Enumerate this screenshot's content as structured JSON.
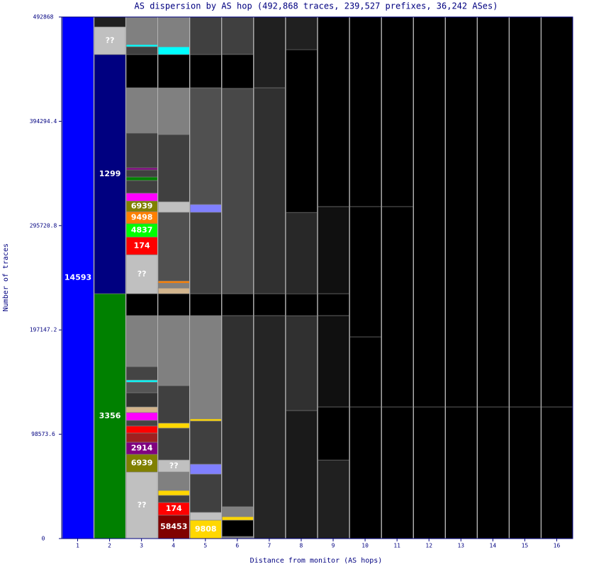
{
  "chart_data": {
    "type": "stacked-columns",
    "title": "AS dispersion by AS hop (492,868 traces, 239,527 prefixes, 36,242 ASes)",
    "x_label": "Distance from monitor (AS hops)",
    "y_label": "Number of traces",
    "ylim": [
      0,
      492868
    ],
    "yticks": [
      0,
      98573.6,
      197147.2,
      295720.8,
      394294.4,
      492868
    ],
    "categories": [
      "1",
      "2",
      "3",
      "4",
      "5",
      "6",
      "7",
      "8",
      "9",
      "10",
      "11",
      "12",
      "13",
      "14",
      "15",
      "16"
    ],
    "stacks": [
      {
        "segments": [
          {
            "value": 492868,
            "color": "#0000ff",
            "label": "14593"
          }
        ]
      },
      {
        "segments": [
          {
            "value": 231400,
            "color": "#008000",
            "label": "3356"
          },
          {
            "value": 226000,
            "color": "#000080",
            "label": "1299"
          },
          {
            "value": 26100,
            "color": "#c0c0c0",
            "label": "??"
          },
          {
            "value": 9368,
            "color": "#202020"
          }
        ]
      },
      {
        "segments": [
          {
            "value": 62900,
            "color": "#c0c0c0",
            "label": "??"
          },
          {
            "value": 16700,
            "color": "#808000",
            "label": "6939"
          },
          {
            "value": 11400,
            "color": "#800080",
            "label": "2914"
          },
          {
            "value": 8700,
            "color": "#a02020"
          },
          {
            "value": 6700,
            "color": "#ff0000"
          },
          {
            "value": 5300,
            "color": "#444444"
          },
          {
            "value": 7400,
            "color": "#ff00ff"
          },
          {
            "value": 5300,
            "color": "#d2b48c"
          },
          {
            "value": 13400,
            "color": "#333333"
          },
          {
            "value": 10000,
            "color": "#555555"
          },
          {
            "value": 2000,
            "color": "#00ffff"
          },
          {
            "value": 12700,
            "color": "#444444"
          },
          {
            "value": 48200,
            "color": "#808080"
          },
          {
            "value": 20700,
            "color": "#000000"
          },
          {
            "value": 36800,
            "color": "#c0c0c0",
            "label": "??"
          },
          {
            "value": 16700,
            "color": "#ff0000",
            "label": "174"
          },
          {
            "value": 12700,
            "color": "#00ff00",
            "label": "4837"
          },
          {
            "value": 11400,
            "color": "#ff8000",
            "label": "9498"
          },
          {
            "value": 10000,
            "color": "#808000",
            "label": "6939"
          },
          {
            "value": 7400,
            "color": "#ff00ff"
          },
          {
            "value": 12000,
            "color": "#404040"
          },
          {
            "value": 3300,
            "color": "#008000"
          },
          {
            "value": 6700,
            "color": "#404040"
          },
          {
            "value": 2000,
            "color": "#800080"
          },
          {
            "value": 32800,
            "color": "#404040"
          },
          {
            "value": 42800,
            "color": "#808080"
          },
          {
            "value": 31400,
            "color": "#000000"
          },
          {
            "value": 7400,
            "color": "#404040"
          },
          {
            "value": 2000,
            "color": "#00ffff"
          },
          {
            "value": 26068,
            "color": "#808080"
          }
        ]
      },
      {
        "segments": [
          {
            "value": 22100,
            "color": "#800000",
            "label": "58453"
          },
          {
            "value": 12000,
            "color": "#ff0000",
            "label": "174"
          },
          {
            "value": 6700,
            "color": "#404040"
          },
          {
            "value": 4700,
            "color": "#ffd700"
          },
          {
            "value": 17400,
            "color": "#808080"
          },
          {
            "value": 11400,
            "color": "#c0c0c0",
            "label": "??"
          },
          {
            "value": 30100,
            "color": "#404040"
          },
          {
            "value": 4700,
            "color": "#ffd700"
          },
          {
            "value": 35400,
            "color": "#404040"
          },
          {
            "value": 66200,
            "color": "#808080"
          },
          {
            "value": 20700,
            "color": "#000000"
          },
          {
            "value": 5300,
            "color": "#d2b48c"
          },
          {
            "value": 4700,
            "color": "#808080"
          },
          {
            "value": 2000,
            "color": "#ff8000"
          },
          {
            "value": 64900,
            "color": "#505050"
          },
          {
            "value": 10000,
            "color": "#c0c0c0"
          },
          {
            "value": 63500,
            "color": "#404040"
          },
          {
            "value": 44100,
            "color": "#808080"
          },
          {
            "value": 31400,
            "color": "#000000"
          },
          {
            "value": 7400,
            "color": "#00ffff"
          },
          {
            "value": 28000,
            "color": "#808080"
          }
        ]
      },
      {
        "segments": [
          {
            "value": 17400,
            "color": "#ffd700",
            "label": "9808"
          },
          {
            "value": 7400,
            "color": "#c0c0c0"
          },
          {
            "value": 36100,
            "color": "#404040"
          },
          {
            "value": 9400,
            "color": "#8080ff"
          },
          {
            "value": 40800,
            "color": "#404040"
          },
          {
            "value": 2000,
            "color": "#ffd700"
          },
          {
            "value": 97600,
            "color": "#808080"
          },
          {
            "value": 20700,
            "color": "#000000"
          },
          {
            "value": 76900,
            "color": "#404040"
          },
          {
            "value": 7400,
            "color": "#8080ff"
          },
          {
            "value": 110300,
            "color": "#505050"
          },
          {
            "value": 31400,
            "color": "#000000"
          },
          {
            "value": 35400,
            "color": "#404040"
          }
        ]
      },
      {
        "segments": [
          {
            "value": 2000,
            "color": "#808080"
          },
          {
            "value": 15400,
            "color": "#000000"
          },
          {
            "value": 3300,
            "color": "#ffd700"
          },
          {
            "value": 9400,
            "color": "#808080"
          },
          {
            "value": 180600,
            "color": "#303030"
          },
          {
            "value": 20700,
            "color": "#000000"
          },
          {
            "value": 194000,
            "color": "#484848"
          },
          {
            "value": 32100,
            "color": "#000000"
          },
          {
            "value": 35400,
            "color": "#404040"
          }
        ]
      },
      {
        "segments": [
          {
            "value": 210700,
            "color": "#252525"
          },
          {
            "value": 20700,
            "color": "#000000"
          },
          {
            "value": 194600,
            "color": "#303030"
          },
          {
            "value": 66900,
            "color": "#202020"
          }
        ]
      },
      {
        "segments": [
          {
            "value": 121000,
            "color": "#1a1a1a"
          },
          {
            "value": 89600,
            "color": "#303030"
          },
          {
            "value": 20700,
            "color": "#000000"
          },
          {
            "value": 76900,
            "color": "#282828"
          },
          {
            "value": 153800,
            "color": "#000000"
          },
          {
            "value": 30800,
            "color": "#202020"
          }
        ]
      },
      {
        "segments": [
          {
            "value": 74200,
            "color": "#202020"
          },
          {
            "value": 50200,
            "color": "#000000"
          },
          {
            "value": 86300,
            "color": "#101010"
          },
          {
            "value": 20700,
            "color": "#000000"
          },
          {
            "value": 82300,
            "color": "#101010"
          },
          {
            "value": 179200,
            "color": "#000000"
          }
        ]
      },
      {
        "segments": [
          {
            "value": 124400,
            "color": "#000000"
          },
          {
            "value": 66200,
            "color": "#000000"
          },
          {
            "value": 123100,
            "color": "#000000"
          },
          {
            "value": 179200,
            "color": "#000000"
          }
        ]
      },
      {
        "segments": [
          {
            "value": 124400,
            "color": "#000000"
          },
          {
            "value": 189300,
            "color": "#000000"
          },
          {
            "value": 179200,
            "color": "#000000"
          }
        ]
      },
      {
        "segments": [
          {
            "value": 124400,
            "color": "#000000"
          },
          {
            "value": 368468,
            "color": "#000000"
          }
        ]
      },
      {
        "segments": [
          {
            "value": 124400,
            "color": "#000000"
          },
          {
            "value": 368468,
            "color": "#000000"
          }
        ]
      },
      {
        "segments": [
          {
            "value": 124400,
            "color": "#000000"
          },
          {
            "value": 368468,
            "color": "#000000"
          }
        ]
      },
      {
        "segments": [
          {
            "value": 124400,
            "color": "#000000"
          },
          {
            "value": 368468,
            "color": "#000000"
          }
        ]
      },
      {
        "segments": [
          {
            "value": 124400,
            "color": "#000000"
          },
          {
            "value": 368468,
            "color": "#000000"
          }
        ]
      }
    ]
  }
}
